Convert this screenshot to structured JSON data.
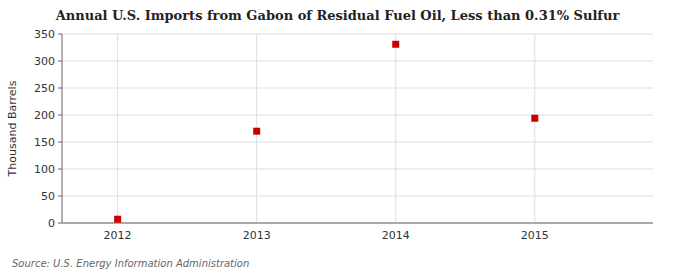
{
  "chart_data": {
    "type": "scatter",
    "title": "Annual U.S. Imports from Gabon of Residual Fuel Oil, Less than 0.31% Sulfur",
    "y_label": "Thousand Barrels",
    "source": "Source: U.S. Energy Information Administration",
    "x": [
      2012,
      2013,
      2014,
      2015
    ],
    "values": [
      7,
      170,
      331,
      194
    ],
    "xlim": [
      2011.6,
      2015.85
    ],
    "xticks": [
      2012,
      2013,
      2014,
      2015
    ],
    "ylim": [
      0,
      350
    ],
    "yticks": [
      0,
      50,
      100,
      150,
      200,
      250,
      300,
      350
    ],
    "color": "#cc0000",
    "marker": "square",
    "grid": true
  }
}
